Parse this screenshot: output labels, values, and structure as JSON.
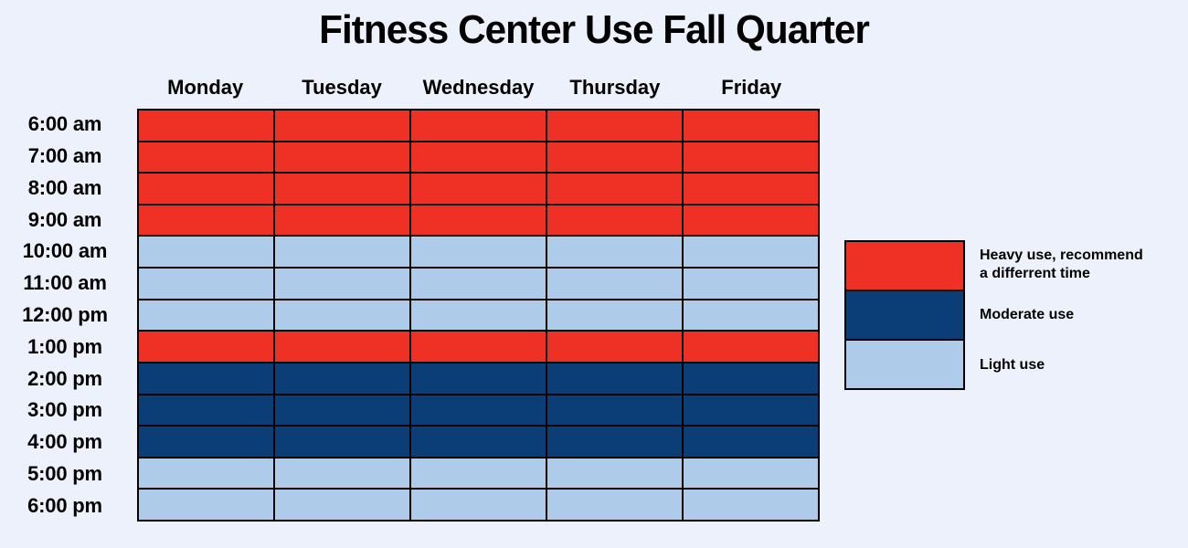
{
  "page": {
    "background": "#edf1fb"
  },
  "chart_data": {
    "type": "heatmap",
    "title": "Fitness Center Use Fall Quarter",
    "columns": [
      "Monday",
      "Tuesday",
      "Wednesday",
      "Thursday",
      "Friday"
    ],
    "rows": [
      "6:00 am",
      "7:00 am",
      "8:00 am",
      "9:00 am",
      "10:00 am",
      "11:00 am",
      "12:00 pm",
      "1:00 pm",
      "2:00 pm",
      "3:00 pm",
      "4:00 pm",
      "5:00 pm",
      "6:00 pm"
    ],
    "values": [
      [
        "heavy",
        "heavy",
        "heavy",
        "heavy",
        "heavy"
      ],
      [
        "heavy",
        "heavy",
        "heavy",
        "heavy",
        "heavy"
      ],
      [
        "heavy",
        "heavy",
        "heavy",
        "heavy",
        "heavy"
      ],
      [
        "heavy",
        "heavy",
        "heavy",
        "heavy",
        "heavy"
      ],
      [
        "light",
        "light",
        "light",
        "light",
        "light"
      ],
      [
        "light",
        "light",
        "light",
        "light",
        "light"
      ],
      [
        "light",
        "light",
        "light",
        "light",
        "light"
      ],
      [
        "heavy",
        "heavy",
        "heavy",
        "heavy",
        "heavy"
      ],
      [
        "moderate",
        "moderate",
        "moderate",
        "moderate",
        "moderate"
      ],
      [
        "moderate",
        "moderate",
        "moderate",
        "moderate",
        "moderate"
      ],
      [
        "moderate",
        "moderate",
        "moderate",
        "moderate",
        "moderate"
      ],
      [
        "light",
        "light",
        "light",
        "light",
        "light"
      ],
      [
        "light",
        "light",
        "light",
        "light",
        "light"
      ]
    ],
    "levels": {
      "heavy": {
        "color": "#ee3124"
      },
      "moderate": {
        "color": "#0b3e77"
      },
      "light": {
        "color": "#aecbe9"
      }
    },
    "legend": [
      {
        "level": "heavy",
        "lines": [
          "Heavy use, recommend",
          "a differrent time"
        ]
      },
      {
        "level": "moderate",
        "lines": [
          "Moderate use"
        ]
      },
      {
        "level": "light",
        "lines": [
          "Light use"
        ]
      }
    ],
    "legend_position": "right",
    "grid": "on",
    "grid_line_color": "#000000"
  }
}
